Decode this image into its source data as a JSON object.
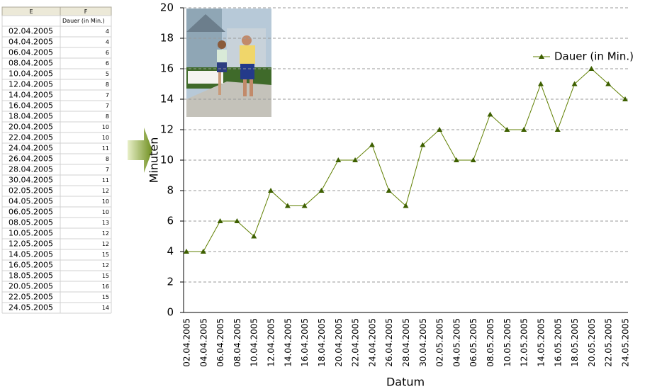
{
  "spreadsheet": {
    "column_headers": [
      "E",
      "F"
    ],
    "header": "Dauer (in Min.)",
    "rows": [
      [
        "02.04.2005",
        4
      ],
      [
        "04.04.2005",
        4
      ],
      [
        "06.04.2005",
        6
      ],
      [
        "08.04.2005",
        6
      ],
      [
        "10.04.2005",
        5
      ],
      [
        "12.04.2005",
        8
      ],
      [
        "14.04.2005",
        7
      ],
      [
        "16.04.2005",
        7
      ],
      [
        "18.04.2005",
        8
      ],
      [
        "20.04.2005",
        10
      ],
      [
        "22.04.2005",
        10
      ],
      [
        "24.04.2005",
        11
      ],
      [
        "26.04.2005",
        8
      ],
      [
        "28.04.2005",
        7
      ],
      [
        "30.04.2005",
        11
      ],
      [
        "02.05.2005",
        12
      ],
      [
        "04.05.2005",
        10
      ],
      [
        "06.05.2005",
        10
      ],
      [
        "08.05.2005",
        13
      ],
      [
        "10.05.2005",
        12
      ],
      [
        "12.05.2005",
        12
      ],
      [
        "14.05.2005",
        15
      ],
      [
        "16.05.2005",
        12
      ],
      [
        "18.05.2005",
        15
      ],
      [
        "20.05.2005",
        16
      ],
      [
        "22.05.2005",
        15
      ],
      [
        "24.05.2005",
        14
      ]
    ]
  },
  "chart_data": {
    "type": "line",
    "x_label": "Datum",
    "y_label": "Minuten",
    "categories": [
      "02.04.2005",
      "04.04.2005",
      "06.04.2005",
      "08.04.2005",
      "10.04.2005",
      "12.04.2005",
      "14.04.2005",
      "16.04.2005",
      "18.04.2005",
      "20.04.2005",
      "22.04.2005",
      "24.04.2005",
      "26.04.2005",
      "28.04.2005",
      "30.04.2005",
      "02.05.2005",
      "04.05.2005",
      "06.05.2005",
      "08.05.2005",
      "10.05.2005",
      "12.05.2005",
      "14.05.2005",
      "16.05.2005",
      "18.05.2005",
      "20.05.2005",
      "22.05.2005",
      "24.05.2005"
    ],
    "series": [
      {
        "name": "Dauer (in Min.)",
        "color": "#5f7f00",
        "values": [
          4,
          4,
          6,
          6,
          5,
          8,
          7,
          7,
          8,
          10,
          10,
          11,
          8,
          7,
          11,
          12,
          10,
          10,
          13,
          12,
          12,
          15,
          12,
          15,
          16,
          15,
          14
        ]
      }
    ],
    "ylim": [
      0,
      20
    ],
    "yticks": [
      0,
      2,
      4,
      6,
      8,
      10,
      12,
      14,
      16,
      18,
      20
    ],
    "grid": true,
    "legend": "top-right"
  }
}
